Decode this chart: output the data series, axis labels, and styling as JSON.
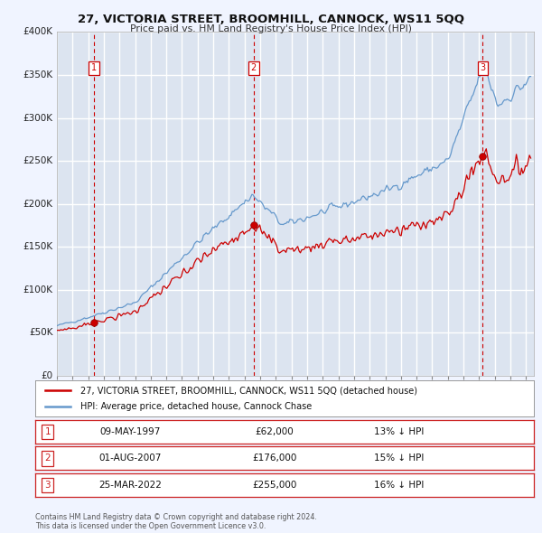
{
  "title": "27, VICTORIA STREET, BROOMHILL, CANNOCK, WS11 5QQ",
  "subtitle": "Price paid vs. HM Land Registry's House Price Index (HPI)",
  "ylim": [
    0,
    400000
  ],
  "yticks": [
    0,
    50000,
    100000,
    150000,
    200000,
    250000,
    300000,
    350000,
    400000
  ],
  "ytick_labels": [
    "£0",
    "£50K",
    "£100K",
    "£150K",
    "£200K",
    "£250K",
    "£300K",
    "£350K",
    "£400K"
  ],
  "background_color": "#f0f4ff",
  "plot_bg_color": "#dce4f0",
  "grid_color": "#ffffff",
  "sale_color": "#cc0000",
  "hpi_color": "#6699cc",
  "transaction_dates": [
    1997.36,
    2007.58,
    2022.23
  ],
  "transaction_prices": [
    62000,
    176000,
    255000
  ],
  "transaction_labels": [
    "1",
    "2",
    "3"
  ],
  "legend_sale_label": "27, VICTORIA STREET, BROOMHILL, CANNOCK, WS11 5QQ (detached house)",
  "legend_hpi_label": "HPI: Average price, detached house, Cannock Chase",
  "table_rows": [
    {
      "num": "1",
      "date": "09-MAY-1997",
      "price": "£62,000",
      "hpi": "13% ↓ HPI"
    },
    {
      "num": "2",
      "date": "01-AUG-2007",
      "price": "£176,000",
      "hpi": "15% ↓ HPI"
    },
    {
      "num": "3",
      "date": "25-MAR-2022",
      "price": "£255,000",
      "hpi": "16% ↓ HPI"
    }
  ],
  "footer": "Contains HM Land Registry data © Crown copyright and database right 2024.\nThis data is licensed under the Open Government Licence v3.0.",
  "xmin": 1995.0,
  "xmax": 2025.5
}
